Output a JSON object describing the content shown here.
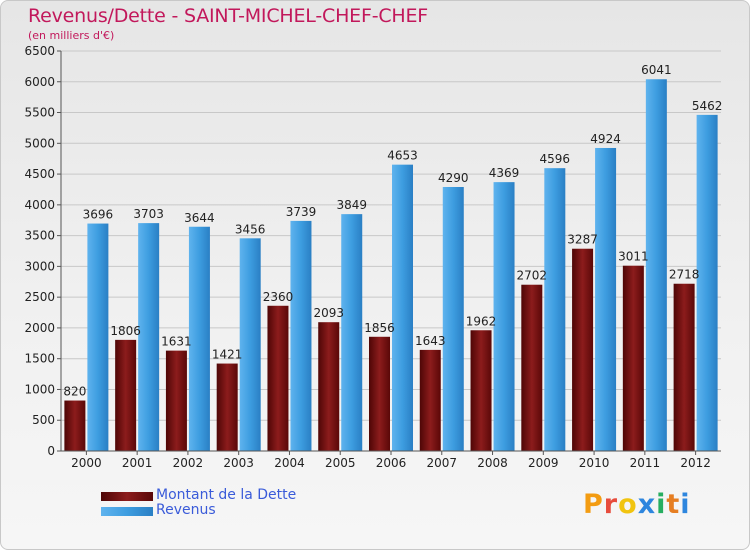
{
  "title": "Revenus/Dette - SAINT-MICHEL-CHEF-CHEF",
  "subtitle": "(en milliers d'€)",
  "logo": {
    "letters": [
      "P",
      "r",
      "o",
      "x",
      "i",
      "t",
      "i"
    ],
    "colors": [
      "#f39c12",
      "#e74c3c",
      "#f1c40f",
      "#2e86de",
      "#27ae60",
      "#e67e22",
      "#2e86de"
    ]
  },
  "colors": {
    "dette": "#7a1010",
    "revenus": "#3d9de0",
    "title": "#c2185b",
    "legend_text": "#3a5bd9"
  },
  "legend": [
    {
      "label": "Montant de la Dette"
    },
    {
      "label": "Revenus"
    }
  ],
  "chart_data": {
    "type": "bar",
    "title": "Revenus/Dette - SAINT-MICHEL-CHEF-CHEF",
    "subtitle": "(en milliers d'€)",
    "categories": [
      "2000",
      "2001",
      "2002",
      "2003",
      "2004",
      "2005",
      "2006",
      "2007",
      "2008",
      "2009",
      "2010",
      "2011",
      "2012"
    ],
    "series": [
      {
        "name": "Montant de la Dette",
        "values": [
          820,
          1806,
          1631,
          1421,
          2360,
          2093,
          1856,
          1643,
          1962,
          2702,
          3287,
          3011,
          2718
        ],
        "labels": [
          "820",
          "1806",
          "1631",
          "1421",
          "2360",
          "2093",
          "1856",
          "1643",
          "1962",
          "2702",
          "3287",
          "3011",
          "2718"
        ]
      },
      {
        "name": "Revenus",
        "values": [
          3696,
          3703,
          3644,
          3456,
          3739,
          3849,
          4653,
          4290,
          4369,
          4596,
          4924,
          6041,
          5462
        ],
        "labels": [
          "3696",
          "3703",
          "3644",
          "3456",
          "3739",
          "3849",
          "4653",
          "4290",
          "4369",
          "4596",
          "4924",
          "6041",
          "5462"
        ]
      }
    ],
    "ylim": [
      0,
      6500
    ],
    "yticks": [
      0,
      500,
      1000,
      1500,
      2000,
      2500,
      3000,
      3500,
      4000,
      4500,
      5000,
      5500,
      6000,
      6500
    ],
    "grid": true,
    "legend_position": "bottom-left"
  }
}
